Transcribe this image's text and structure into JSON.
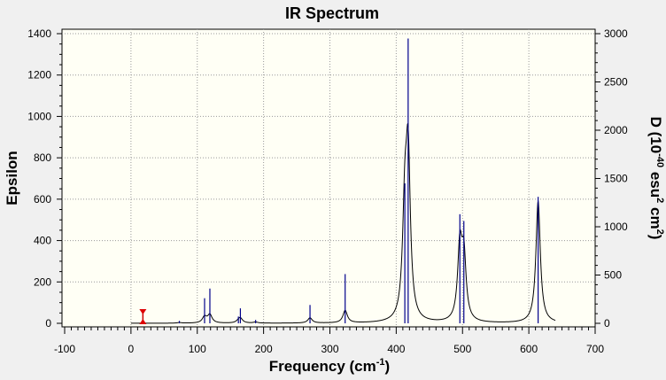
{
  "chart_data": {
    "type": "line",
    "title": "IR Spectrum",
    "xlabel_main": "Frequency (cm",
    "xlabel_sup": "-1",
    "xlabel_end": ")",
    "ylabel_left": "Epsilon",
    "ylabel_right_parts": [
      "D (10",
      "-40",
      " esu",
      "2",
      " cm",
      "2",
      ")"
    ],
    "xlim": [
      -100,
      700
    ],
    "ylim_left": [
      0,
      1400
    ],
    "ylim_right": [
      0,
      3000
    ],
    "x_ticks": [
      -100,
      0,
      100,
      200,
      300,
      400,
      500,
      600,
      700
    ],
    "y_ticks_left": [
      0,
      200,
      400,
      600,
      800,
      1000,
      1200,
      1400
    ],
    "y_ticks_right": [
      0,
      500,
      1000,
      1500,
      2000,
      2500,
      3000
    ],
    "grid": "dotted",
    "marker": {
      "x": 18,
      "label": "scale-marker"
    },
    "peaks": [
      {
        "x": 73,
        "epsilon": 3,
        "D": 25
      },
      {
        "x": 111,
        "epsilon": 30,
        "D": 260
      },
      {
        "x": 119,
        "epsilon": 40,
        "D": 360
      },
      {
        "x": 162,
        "epsilon": 8,
        "D": 70
      },
      {
        "x": 165,
        "epsilon": 22,
        "D": 155
      },
      {
        "x": 188,
        "epsilon": 5,
        "D": 35
      },
      {
        "x": 270,
        "epsilon": 25,
        "D": 190
      },
      {
        "x": 323,
        "epsilon": 60,
        "D": 510
      },
      {
        "x": 413,
        "epsilon": 490,
        "D": 1450
      },
      {
        "x": 418,
        "epsilon": 760,
        "D": 2950
      },
      {
        "x": 496,
        "epsilon": 350,
        "D": 1130
      },
      {
        "x": 502,
        "epsilon": 300,
        "D": 1060
      },
      {
        "x": 614,
        "epsilon": 590,
        "D": 1310
      }
    ],
    "halfwidth": 4,
    "series": [
      {
        "name": "Epsilon",
        "color": "#000000"
      },
      {
        "name": "D",
        "color": "#00008b"
      }
    ]
  }
}
